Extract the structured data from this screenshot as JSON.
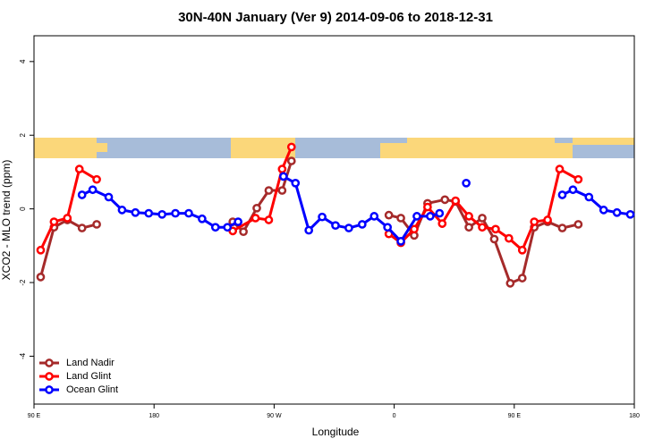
{
  "chart_data": {
    "type": "line",
    "title": "30N-40N January (Ver 9)   2014-09-06 to 2018-12-31",
    "x_label": "Longitude",
    "y_label": "XCO2 - MLO trend (ppm)",
    "xlim": [
      90,
      540
    ],
    "xticks": [
      {
        "value": 90,
        "label": "90 E"
      },
      180,
      {
        "value": 270,
        "label": "90 W"
      },
      {
        "value": 360,
        "label": "0"
      },
      {
        "value": 450,
        "label": "90 E"
      },
      {
        "value": 540,
        "label": "180"
      }
    ],
    "ylim": [
      -5.3,
      4.7
    ],
    "yticks": [
      -4,
      -2,
      0,
      2,
      4
    ],
    "legend": "bottom-left",
    "series": [
      {
        "name": "Land Nadir",
        "color": "#a52a2a",
        "x": [
          95,
          105,
          115,
          126,
          137,
          null,
          239,
          247,
          257,
          266,
          276,
          283,
          null,
          356,
          365,
          375,
          385,
          398,
          406,
          416,
          426,
          435,
          447,
          456,
          465,
          475,
          486,
          498
        ],
        "values": [
          -1.85,
          -0.5,
          -0.3,
          -0.52,
          -0.42,
          null,
          -0.35,
          -0.62,
          0.02,
          0.5,
          0.5,
          1.3,
          null,
          -0.17,
          -0.25,
          -0.72,
          0.15,
          0.25,
          0.2,
          -0.5,
          -0.25,
          -0.82,
          -2.02,
          -1.88,
          -0.5,
          -0.35,
          -0.52,
          -0.42
        ]
      },
      {
        "name": "Land Glint",
        "color": "#ff0000",
        "x": [
          95,
          105,
          115,
          124,
          137,
          null,
          239,
          256,
          266,
          276,
          283,
          null,
          356,
          365,
          375,
          385,
          396,
          406,
          416,
          426,
          436,
          446,
          456,
          465,
          475,
          484,
          498
        ],
        "values": [
          -1.12,
          -0.35,
          -0.25,
          1.08,
          0.8,
          null,
          -0.6,
          -0.25,
          -0.3,
          1.08,
          1.68,
          null,
          -0.68,
          -0.92,
          -0.55,
          0.05,
          -0.4,
          0.22,
          -0.2,
          -0.5,
          -0.55,
          -0.8,
          -1.12,
          -0.35,
          -0.3,
          1.08,
          0.8
        ]
      },
      {
        "name": "Ocean Glint",
        "color": "#0000ff",
        "x": [
          126,
          134,
          146,
          156,
          166,
          176,
          186,
          196,
          206,
          216,
          226,
          235,
          243,
          null,
          277,
          286,
          296,
          306,
          316,
          326,
          336,
          345,
          355,
          365,
          377,
          387,
          394,
          null,
          414,
          null,
          486,
          494,
          506,
          517,
          527,
          537
        ],
        "values": [
          0.38,
          0.52,
          0.32,
          -0.03,
          -0.1,
          -0.12,
          -0.15,
          -0.12,
          -0.12,
          -0.27,
          -0.5,
          -0.5,
          -0.35,
          null,
          0.88,
          0.7,
          -0.58,
          -0.22,
          -0.45,
          -0.52,
          -0.42,
          -0.2,
          -0.5,
          -0.88,
          -0.2,
          -0.2,
          -0.12,
          null,
          0.7,
          null,
          0.38,
          0.52,
          0.32,
          -0.03,
          -0.1,
          -0.15
        ]
      }
    ]
  }
}
